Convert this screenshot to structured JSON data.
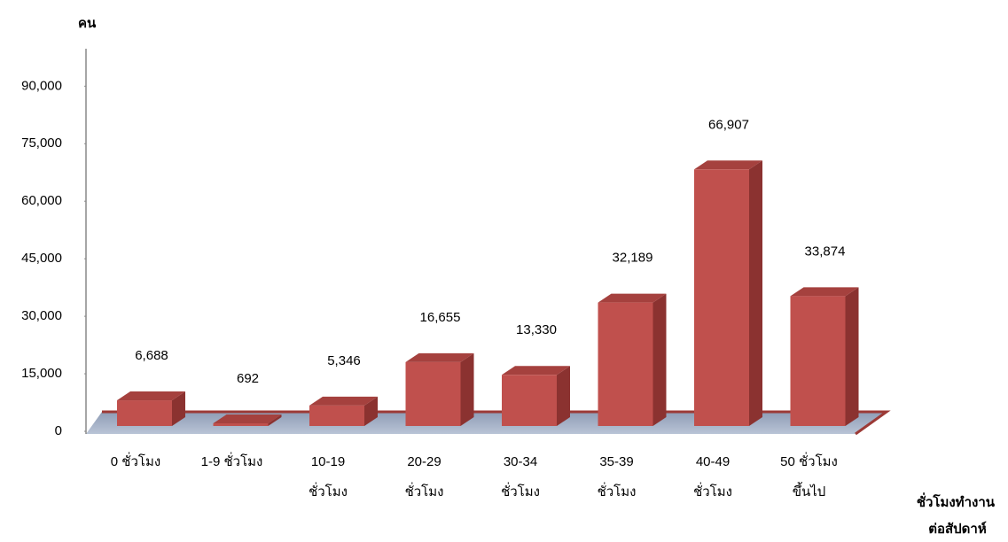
{
  "chart_data": {
    "type": "bar3d",
    "y_label": "คน",
    "x_label": [
      "ชั่วโมงทำงาน",
      "ต่อสัปดาห์"
    ],
    "categories": [
      [
        "0  ชั่วโมง"
      ],
      [
        "1-9 ชั่วโมง"
      ],
      [
        "10-19",
        "ชั่วโมง"
      ],
      [
        "20-29",
        "ชั่วโมง"
      ],
      [
        "30-34",
        "ชั่วโมง"
      ],
      [
        "35-39",
        "ชั่วโมง"
      ],
      [
        "40-49",
        "ชั่วโมง"
      ],
      [
        "50 ชั่วโมง",
        "ขึ้นไป"
      ]
    ],
    "values": [
      6688,
      692,
      5346,
      16655,
      13330,
      32189,
      66907,
      33874
    ],
    "value_labels": [
      "6,688",
      "692",
      "5,346",
      "16,655",
      "13,330",
      "32,189",
      "66,907",
      "33,874"
    ],
    "color": "#c0504d",
    "ylim": [
      0,
      100000
    ],
    "yticks": [
      0,
      {
        "value": 15000,
        "label": "15,000"
      },
      {
        "value": 30000,
        "label": "30,000"
      },
      {
        "value": 45000,
        "label": "45,000"
      },
      {
        "value": 60000,
        "label": "60,000"
      },
      {
        "value": 75000,
        "label": "75,000"
      },
      {
        "value": 90000,
        "label": "90,000"
      }
    ]
  }
}
